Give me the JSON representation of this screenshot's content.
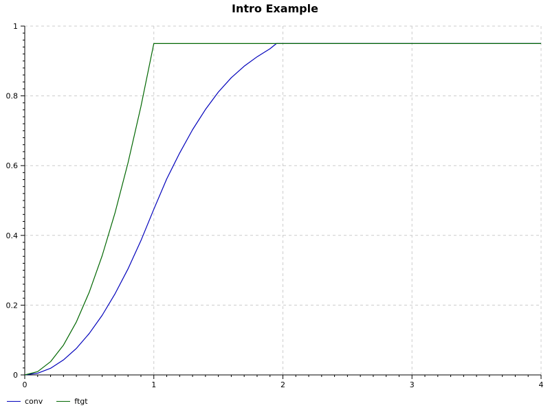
{
  "chart_data": {
    "type": "line",
    "title": "Intro Example",
    "xlabel": "",
    "ylabel": "",
    "xlim": [
      0,
      4
    ],
    "ylim": [
      0,
      1
    ],
    "x_ticks": [
      0,
      1,
      2,
      3,
      4
    ],
    "y_ticks": [
      0,
      0.2,
      0.4,
      0.6,
      0.8,
      1
    ],
    "x_tick_labels": [
      "0",
      "1",
      "2",
      "3",
      "4"
    ],
    "y_tick_labels": [
      "0",
      "0.2",
      "0.4",
      "0.6",
      "0.8",
      "1"
    ],
    "grid": true,
    "legend_position": "bottom-left",
    "series": [
      {
        "name": "conv",
        "color": "#0000bb",
        "x": [
          0,
          0.1,
          0.2,
          0.3,
          0.4,
          0.5,
          0.6,
          0.7,
          0.8,
          0.9,
          1.0,
          1.1,
          1.2,
          1.3,
          1.4,
          1.5,
          1.6,
          1.7,
          1.8,
          1.9,
          1.95,
          2.0,
          2.5,
          3.0,
          3.5,
          4.0
        ],
        "y": [
          0,
          0.0048,
          0.019,
          0.043,
          0.076,
          0.119,
          0.171,
          0.233,
          0.304,
          0.385,
          0.475,
          0.562,
          0.636,
          0.703,
          0.761,
          0.811,
          0.852,
          0.885,
          0.912,
          0.935,
          0.95,
          0.95,
          0.95,
          0.95,
          0.95,
          0.95
        ]
      },
      {
        "name": "ftgt",
        "color": "#006600",
        "x": [
          0,
          0.1,
          0.2,
          0.3,
          0.4,
          0.5,
          0.6,
          0.7,
          0.8,
          0.9,
          1.0,
          1.5,
          2.0,
          3.0,
          4.0
        ],
        "y": [
          0,
          0.0095,
          0.038,
          0.0855,
          0.152,
          0.2375,
          0.342,
          0.4655,
          0.608,
          0.7695,
          0.95,
          0.95,
          0.95,
          0.95,
          0.95
        ]
      }
    ]
  }
}
